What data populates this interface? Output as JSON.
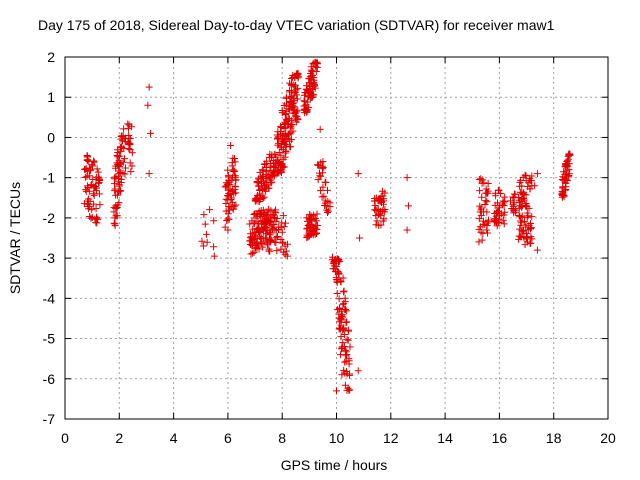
{
  "chart_data": {
    "type": "scatter",
    "title": "Day 175 of 2018, Sidereal Day-to-day VTEC variation (SDTVAR) for receiver maw1",
    "xlabel": "GPS time / hours",
    "ylabel": "SDTVAR / TECUs",
    "xlim": [
      0,
      20
    ],
    "ylim": [
      -7,
      2
    ],
    "xticks": [
      0,
      2,
      4,
      6,
      8,
      10,
      12,
      14,
      16,
      18,
      20
    ],
    "yticks": [
      -7,
      -6,
      -5,
      -4,
      -3,
      -2,
      -1,
      0,
      1,
      2
    ],
    "grid": true,
    "marker": "+",
    "color": "#e00000",
    "clusters": [
      {
        "x0": 0.7,
        "x1": 1.3,
        "ymin": -2.4,
        "ymax": -0.2,
        "n": 70,
        "trend": -0.5
      },
      {
        "x0": 1.8,
        "x1": 2.1,
        "ymin": -2.2,
        "ymax": 0.1,
        "n": 60,
        "trend": 1.5
      },
      {
        "x0": 2.1,
        "x1": 2.5,
        "ymin": -1.0,
        "ymax": 0.4,
        "n": 30,
        "trend": 0.0
      },
      {
        "x0": 5.0,
        "x1": 5.5,
        "ymin": -2.9,
        "ymax": -1.7,
        "n": 8,
        "trend": 0.0
      },
      {
        "x0": 5.9,
        "x1": 6.3,
        "ymin": -2.3,
        "ymax": -0.3,
        "n": 60,
        "trend": 0.5
      },
      {
        "x0": 6.8,
        "x1": 7.6,
        "ymin": -3.0,
        "ymax": -1.6,
        "n": 110,
        "trend": 0.3
      },
      {
        "x0": 7.0,
        "x1": 7.8,
        "ymin": -1.6,
        "ymax": -0.4,
        "n": 90,
        "trend": 1.0
      },
      {
        "x0": 7.8,
        "x1": 8.6,
        "ymin": -0.9,
        "ymax": 1.6,
        "n": 160,
        "trend": 2.0
      },
      {
        "x0": 7.5,
        "x1": 8.2,
        "ymin": -3.0,
        "ymax": -1.8,
        "n": 50,
        "trend": 0.0
      },
      {
        "x0": 8.8,
        "x1": 9.3,
        "ymin": 0.6,
        "ymax": 1.9,
        "n": 80,
        "trend": 1.5
      },
      {
        "x0": 8.9,
        "x1": 9.3,
        "ymin": -2.5,
        "ymax": -1.9,
        "n": 50,
        "trend": 0.0
      },
      {
        "x0": 9.3,
        "x1": 9.8,
        "ymin": -1.9,
        "ymax": -0.6,
        "n": 30,
        "trend": -1.5
      },
      {
        "x0": 9.8,
        "x1": 10.1,
        "ymin": -3.6,
        "ymax": -2.9,
        "n": 20,
        "trend": -1.0
      },
      {
        "x0": 10.0,
        "x1": 10.5,
        "ymin": -6.3,
        "ymax": -3.0,
        "n": 80,
        "trend": -4.0
      },
      {
        "x0": 11.4,
        "x1": 11.8,
        "ymin": -2.2,
        "ymax": -1.3,
        "n": 40,
        "trend": 0.0
      },
      {
        "x0": 15.2,
        "x1": 15.6,
        "ymin": -2.6,
        "ymax": -1.0,
        "n": 40,
        "trend": 0.0
      },
      {
        "x0": 15.8,
        "x1": 16.2,
        "ymin": -2.2,
        "ymax": -1.3,
        "n": 40,
        "trend": 0.0
      },
      {
        "x0": 16.4,
        "x1": 16.6,
        "ymin": -1.9,
        "ymax": -1.3,
        "n": 15,
        "trend": 0.0
      },
      {
        "x0": 16.7,
        "x1": 17.2,
        "ymin": -2.7,
        "ymax": -0.9,
        "n": 80,
        "trend": 0.0
      },
      {
        "x0": 18.3,
        "x1": 18.6,
        "ymin": -1.5,
        "ymax": -0.4,
        "n": 60,
        "trend": 1.0
      }
    ],
    "points": [
      [
        3.1,
        1.25
      ],
      [
        3.05,
        0.8
      ],
      [
        3.15,
        0.1
      ],
      [
        3.1,
        -0.9
      ],
      [
        5.1,
        -2.7
      ],
      [
        5.5,
        -2.95
      ],
      [
        10.8,
        -5.8
      ],
      [
        10.85,
        -2.5
      ],
      [
        10.8,
        -0.9
      ],
      [
        12.6,
        -1.0
      ],
      [
        12.65,
        -1.7
      ],
      [
        12.6,
        -2.3
      ],
      [
        17.4,
        -2.8
      ],
      [
        17.3,
        -1.2
      ],
      [
        17.4,
        -0.9
      ],
      [
        10.0,
        -6.3
      ],
      [
        10.2,
        -5.9
      ],
      [
        10.15,
        -5.4
      ],
      [
        10.3,
        -4.9
      ],
      [
        10.35,
        -4.6
      ],
      [
        9.5,
        -0.6
      ],
      [
        9.4,
        0.2
      ],
      [
        6.1,
        -0.2
      ],
      [
        6.0,
        -2.3
      ]
    ]
  }
}
